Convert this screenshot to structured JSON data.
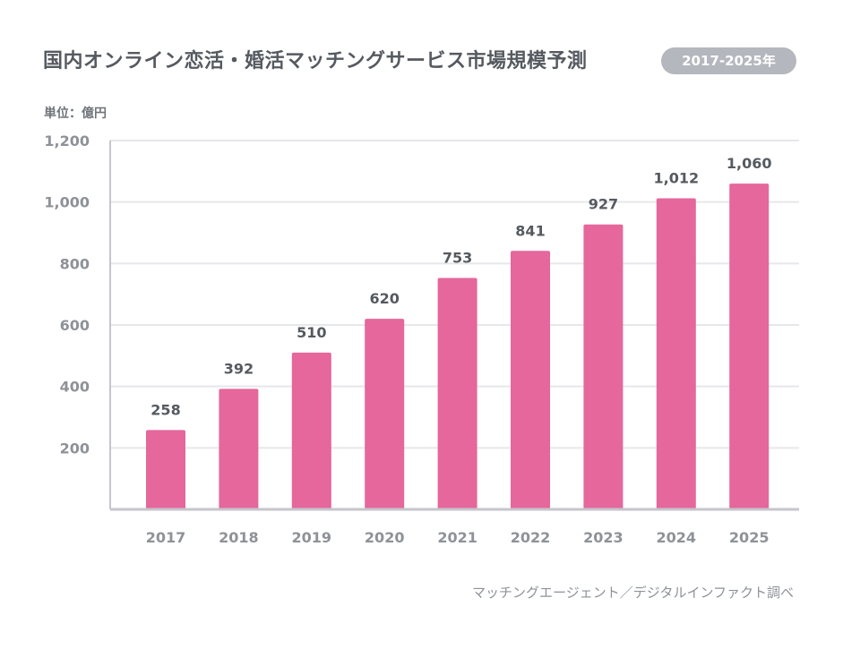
{
  "header": {
    "title": "国内オンライン恋活・婚活マッチングサービス市場規模予測",
    "period_badge": "2017-2025年"
  },
  "unit_label": "単位：億円",
  "source": "マッチングエージェント／デジタルインファクト調べ",
  "colors": {
    "bar": "#e5679b",
    "grid": "#e6e7ea",
    "axis": "#c4c6cb"
  },
  "chart_data": {
    "type": "bar",
    "categories": [
      "2017",
      "2018",
      "2019",
      "2020",
      "2021",
      "2022",
      "2023",
      "2024",
      "2025"
    ],
    "values": [
      258,
      392,
      510,
      620,
      753,
      841,
      927,
      1012,
      1060
    ],
    "value_labels": [
      "258",
      "392",
      "510",
      "620",
      "753",
      "841",
      "927",
      "1,012",
      "1,060"
    ],
    "ylim": [
      0,
      1200
    ],
    "yticks": [
      200,
      400,
      600,
      800,
      1000,
      1200
    ],
    "ytick_labels": [
      "200",
      "400",
      "600",
      "800",
      "1,000",
      "1,200"
    ],
    "grid": true
  }
}
